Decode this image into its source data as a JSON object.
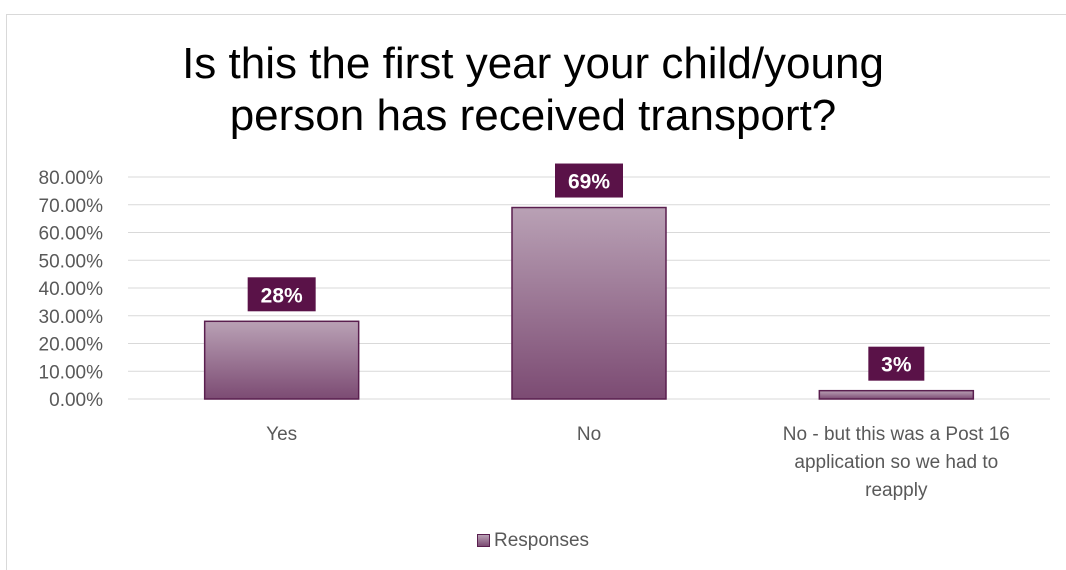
{
  "chart_data": {
    "type": "bar",
    "title_lines": [
      "Is this the first year your child/young",
      "person has received transport?"
    ],
    "categories": [
      [
        "Yes"
      ],
      [
        "No"
      ],
      [
        "No - but this was a Post 16",
        "application so we had to",
        "reapply"
      ]
    ],
    "series": [
      {
        "name": "Responses",
        "values": [
          0.28,
          0.69,
          0.03
        ],
        "data_labels": [
          "28%",
          "69%",
          "3%"
        ]
      }
    ],
    "ylim": [
      0,
      0.8
    ],
    "yticks": [
      "0.00%",
      "10.00%",
      "20.00%",
      "30.00%",
      "40.00%",
      "50.00%",
      "60.00%",
      "70.00%",
      "80.00%"
    ],
    "grid": true,
    "legend_position": "bottom",
    "colors": {
      "bar_top": "#b9a1b5",
      "bar_bottom": "#7c4b73",
      "bar_border": "#5a1f4f",
      "label_bg": "#5a1248",
      "label_text": "#ffffff",
      "grid": "#d9d9d9",
      "axis_text": "#595959"
    }
  }
}
